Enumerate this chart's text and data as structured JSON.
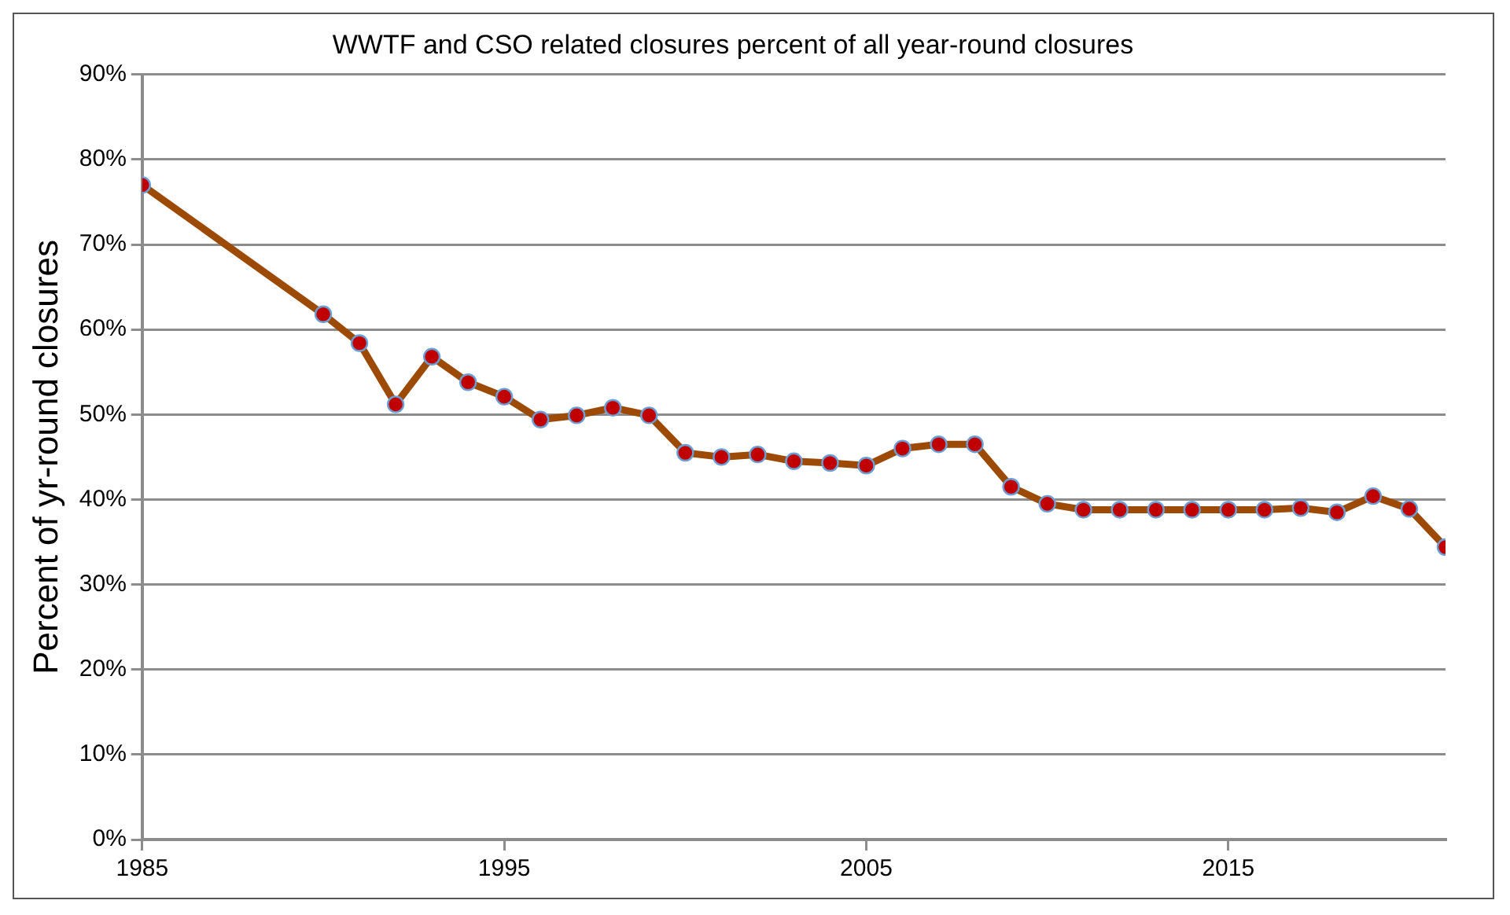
{
  "chart_data": {
    "type": "line",
    "title": "WWTF and CSO related closures percent of all year-round closures",
    "ylabel": "Percent of yr-round closures",
    "x": [
      1985,
      1990,
      1991,
      1992,
      1993,
      1994,
      1995,
      1996,
      1997,
      1998,
      1999,
      2000,
      2001,
      2002,
      2003,
      2004,
      2005,
      2006,
      2007,
      2008,
      2009,
      2010,
      2011,
      2012,
      2013,
      2014,
      2015,
      2016,
      2017,
      2018,
      2019,
      2020,
      2021
    ],
    "series": [
      {
        "color": "#9c4a06",
        "values": [
          77,
          61.8,
          58.4,
          51.2,
          56.8,
          53.8,
          52.1,
          49.4,
          49.9,
          50.8,
          49.9,
          45.5,
          45,
          45.3,
          44.5,
          44.3,
          44,
          46,
          46.5,
          46.5,
          41.5,
          39.5,
          38.8,
          38.8,
          38.8,
          38.8,
          38.8,
          38.8,
          39,
          38.5,
          40.4,
          38.9,
          34.4
        ]
      }
    ],
    "marker": "circle",
    "line_style": "solid",
    "grid": "y",
    "legend": false,
    "xlim": [
      1985,
      2021
    ],
    "xticks": [
      1985,
      1995,
      2005,
      2015
    ],
    "ylim": [
      0,
      90
    ],
    "yticks": [
      {
        "value": 0,
        "label": "0%"
      },
      {
        "value": 10,
        "label": "10%"
      },
      {
        "value": 20,
        "label": "20%"
      },
      {
        "value": 30,
        "label": "30%"
      },
      {
        "value": 40,
        "label": "40%"
      },
      {
        "value": 50,
        "label": "50%"
      },
      {
        "value": 60,
        "label": "60%"
      },
      {
        "value": 70,
        "label": "70%"
      },
      {
        "value": 80,
        "label": "80%"
      },
      {
        "value": 90,
        "label": "90%"
      }
    ]
  }
}
